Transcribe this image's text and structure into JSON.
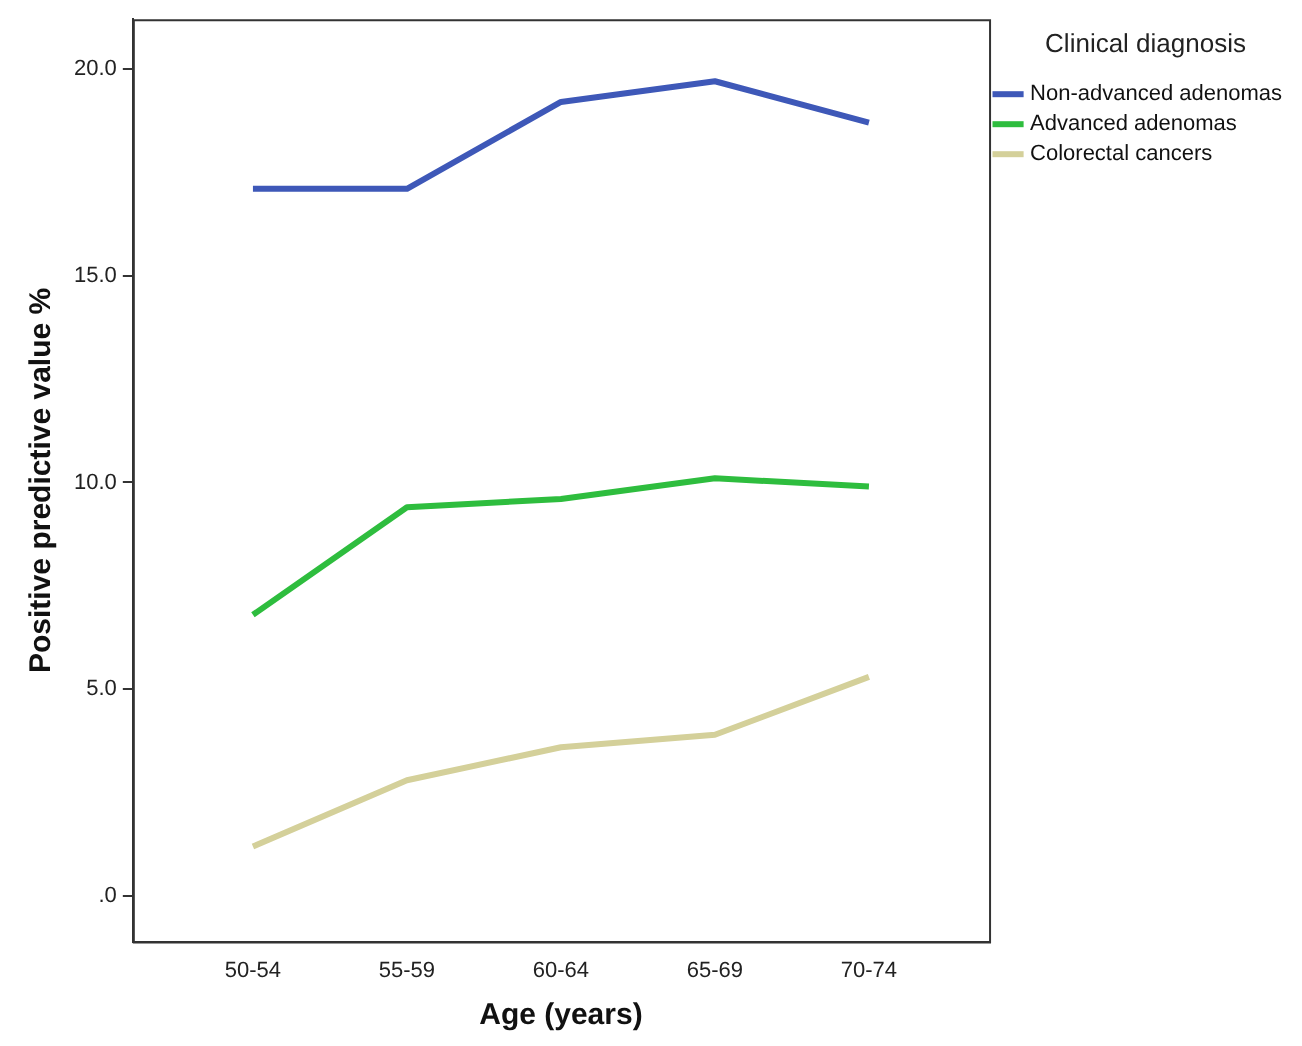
{
  "chart_data": {
    "type": "line",
    "xlabel": "Age (years)",
    "ylabel": "Positive predictive value %",
    "legend_title": "Clinical diagnosis",
    "categories": [
      "50-54",
      "55-59",
      "60-64",
      "65-69",
      "70-74"
    ],
    "series": [
      {
        "name": "Non-advanced adenomas",
        "color": "#3e58b8",
        "values": [
          17.1,
          17.1,
          19.2,
          19.7,
          18.7
        ]
      },
      {
        "name": "Advanced adenomas",
        "color": "#2ebd3e",
        "values": [
          6.8,
          9.4,
          9.6,
          10.1,
          9.9
        ]
      },
      {
        "name": "Colorectal cancers",
        "color": "#d4d09a",
        "values": [
          1.2,
          2.8,
          3.6,
          3.9,
          5.3
        ]
      }
    ],
    "ylim": [
      -1.1,
      21.2
    ],
    "yticks": [
      {
        "value": 0,
        "label": ".0"
      },
      {
        "value": 5,
        "label": "5.0"
      },
      {
        "value": 10,
        "label": "10.0"
      },
      {
        "value": 15,
        "label": "15.0"
      },
      {
        "value": 20,
        "label": "20.0"
      }
    ],
    "grid": false,
    "legend": "top right",
    "marker": "none",
    "line_style": "solid"
  }
}
